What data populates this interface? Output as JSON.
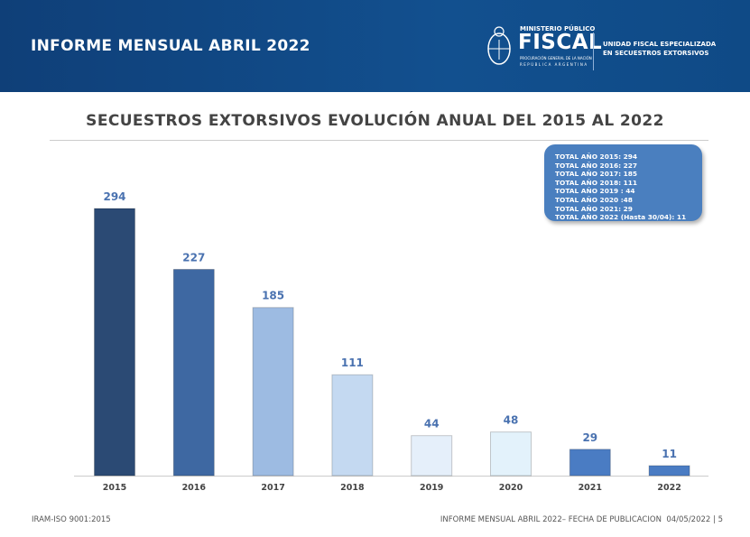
{
  "header": {
    "title": "INFORME MENSUAL ABRIL 2022",
    "logo": {
      "ministerio": "MINISTERIO PÚBLICO",
      "fiscal": "FISCAL",
      "procuracion": "PROCURACIÓN GENERAL DE LA NACIÓN",
      "republica": "REPÚBLICA ARGENTINA"
    },
    "unidad": [
      "UNIDAD FISCAL ESPECIALIZADA",
      "EN SECUESTROS EXTORSIVOS"
    ]
  },
  "chart_data": {
    "type": "bar",
    "title": "SECUESTROS EXTORSIVOS EVOLUCIÓN ANUAL DEL 2015 AL 2022",
    "categories": [
      "2015",
      "2016",
      "2017",
      "2018",
      "2019",
      "2020",
      "2021",
      "2022"
    ],
    "values": [
      294,
      227,
      185,
      111,
      44,
      48,
      29,
      11
    ],
    "data_labels": [
      "294",
      "227",
      "185",
      "111",
      "44",
      "48",
      "29",
      "11"
    ],
    "colors": [
      "#2b4a74",
      "#3e68a2",
      "#9dbbe2",
      "#c4d9f1",
      "#e5effa",
      "#e3f2fb",
      "#4a7cc3",
      "#4a7cc3"
    ],
    "xlabel": "",
    "ylabel": "",
    "ylim": [
      0,
      294
    ],
    "grid": false,
    "annotation": [
      "TOTAL AÑO 2015: 294",
      "TOTAL AÑO 2016: 227",
      "TOTAL AÑO 2017: 185",
      "TOTAL AÑO 2018: 111",
      "TOTAL AÑO 2019 : 44",
      "TOTAL AÑO 2020 :48",
      "TOTAL AÑO 2021: 29",
      "TOTAL AÑO 2022 (Hasta 30/04): 11"
    ]
  },
  "footer": {
    "left": "IRAM-ISO 9001:2015",
    "right": "INFORME MENSUAL ABRIL 2022– FECHA DE PUBLICACION  04/05/2022 | 5"
  }
}
